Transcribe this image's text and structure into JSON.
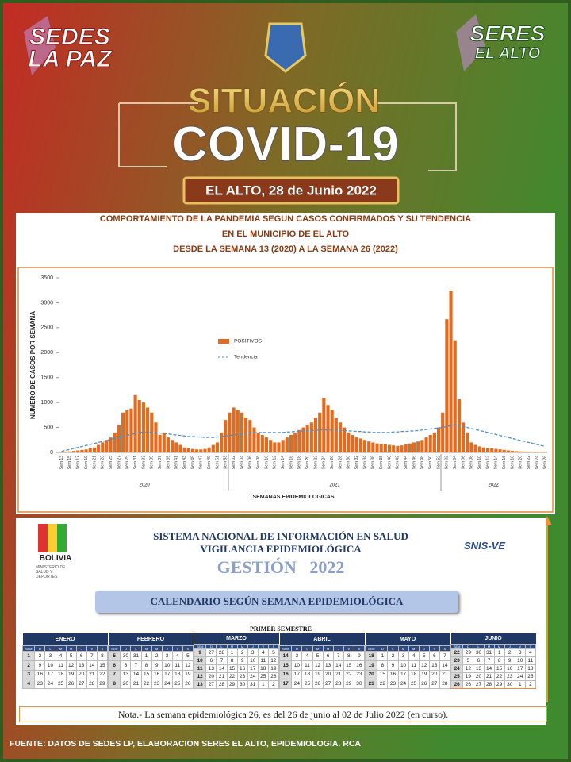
{
  "header": {
    "left_logo": [
      "SEDES",
      "LA PAZ"
    ],
    "right_logo": [
      "SERES",
      "EL ALTO"
    ],
    "title": "SITUACIÓN",
    "subtitle": "COVID-19",
    "date": "EL ALTO, 28 de Junio 2022"
  },
  "chart_data": {
    "type": "bar",
    "title_lines": [
      "COMPORTAMIENTO DE LA PANDEMIA SEGUN CASOS CONFIRMADOS Y SU TENDENCIA",
      "EN EL MUNICIPIO DE EL ALTO",
      "DESDE LA SEMANA 13 (2020) A LA SEMANA  26 (2022)"
    ],
    "ylabel": "NUMERO DE CASOS POR SEMANA",
    "xlabel": "SEMANAS EPIDEMIOLOGICAS",
    "years": [
      "2020",
      "2021",
      "2022"
    ],
    "ylim": [
      0,
      3500
    ],
    "yticks": [
      0,
      500,
      1000,
      1500,
      2000,
      2500,
      3000,
      3500
    ],
    "legend": "upper-left",
    "categories": [
      "Sem 13",
      null,
      "Sem 15",
      null,
      "Sem 17",
      null,
      "Sem 19",
      null,
      "Sem 21",
      null,
      "Sem 23",
      null,
      "Sem 25",
      null,
      "Sem 27",
      null,
      "Sem 29",
      null,
      "Sem 31",
      null,
      "Sem 33",
      null,
      "Sem 35",
      null,
      "Sem 37",
      null,
      "Sem 39",
      null,
      "Sem 41",
      null,
      "Sem 43",
      null,
      "Sem 45",
      null,
      "Sem 47",
      null,
      "Sem 49",
      null,
      "Sem 51",
      null,
      "Sem 53",
      null,
      "Sem 02",
      null,
      "Sem 04",
      null,
      "Sem 06",
      null,
      "Sem 08",
      null,
      "Sem 10",
      null,
      "Sem 12",
      null,
      "Sem 14",
      null,
      "Sem 16",
      null,
      "Sem 18",
      null,
      "Sem 20",
      null,
      "Sem 22",
      null,
      "Sem 24",
      null,
      "Sem 26",
      null,
      "Sem 28",
      null,
      "Sem 30",
      null,
      "Sem 32",
      null,
      "Sem 34",
      null,
      "Sem 36",
      null,
      "Sem 38",
      null,
      "Sem 40",
      null,
      "Sem 42",
      null,
      "Sem 44",
      null,
      "Sem 46",
      null,
      "Sem 48",
      null,
      "Sem 50",
      null,
      "Sem 52",
      null,
      "Sem 02",
      null,
      "Sem 04",
      null,
      "Sem 06",
      null,
      "Sem 08",
      null,
      "Sem 10",
      null,
      "Sem 12",
      null,
      "Sem 14",
      null,
      "Sem 16",
      null,
      "Sem 18",
      null,
      "Sem 20",
      null,
      "Sem 22",
      null,
      "Sem 24",
      null,
      "Sem 26"
    ],
    "series": [
      {
        "name": "POSITIVOS",
        "type": "bar",
        "color": "#e26b1f",
        "values": [
          10,
          15,
          20,
          30,
          40,
          50,
          60,
          80,
          100,
          150,
          200,
          250,
          300,
          400,
          550,
          800,
          850,
          880,
          1150,
          1050,
          1000,
          900,
          800,
          600,
          350,
          400,
          300,
          250,
          200,
          150,
          100,
          80,
          70,
          60,
          60,
          70,
          100,
          150,
          200,
          400,
          650,
          800,
          900,
          850,
          800,
          700,
          650,
          500,
          400,
          350,
          300,
          250,
          200,
          200,
          250,
          300,
          350,
          400,
          450,
          500,
          550,
          600,
          700,
          800,
          1091,
          950,
          850,
          700,
          600,
          500,
          400,
          350,
          300,
          280,
          250,
          220,
          200,
          180,
          170,
          160,
          150,
          140,
          130,
          140,
          160,
          180,
          200,
          220,
          250,
          300,
          350,
          400,
          500,
          800,
          2670,
          3242,
          2248,
          1067,
          600,
          400,
          200,
          150,
          120,
          100,
          90,
          80,
          70,
          60,
          50,
          40,
          30,
          25,
          20,
          15,
          10,
          10,
          10,
          10,
          10
        ]
      },
      {
        "name": "Tendencia",
        "type": "line",
        "line_style": "dashed",
        "color": "#4f8fc9",
        "values": [
          20,
          40,
          60,
          80,
          100,
          120,
          140,
          160,
          180,
          200,
          220,
          240,
          260,
          280,
          300,
          320,
          340,
          360,
          380,
          400,
          410,
          410,
          400,
          400,
          390,
          380,
          370,
          360,
          350,
          340,
          330,
          320,
          320,
          310,
          310,
          300,
          300,
          300,
          310,
          320,
          330,
          340,
          350,
          360,
          370,
          380,
          390,
          390,
          400,
          400,
          400,
          400,
          400,
          400,
          400,
          410,
          410,
          420,
          420,
          430,
          430,
          440,
          440,
          450,
          450,
          450,
          450,
          450,
          440,
          440,
          430,
          430,
          420,
          420,
          410,
          410,
          400,
          400,
          400,
          400,
          400,
          410,
          410,
          420,
          420,
          430,
          430,
          440,
          450,
          460,
          470,
          480,
          490,
          500,
          520,
          540,
          550,
          540,
          520,
          500,
          480,
          460,
          440,
          420,
          400,
          380,
          360,
          340,
          320,
          300,
          280,
          260,
          240,
          220,
          200,
          180,
          160,
          140,
          120
        ]
      }
    ]
  },
  "snis": {
    "country": "BOLIVIA",
    "ministry": "MINISTERIO DE SALUD Y DEPORTES",
    "logo": "SNIS-VE",
    "line1": "SISTEMA NACIONAL DE INFORMACIÓN EN SALUD",
    "line2": "VIGILANCIA EPIDEMIOLÓGICA",
    "gestion": "GESTIÓN   2022",
    "calendar_title": "CALENDARIO SEGÚN SEMANA EPIDEMIOLÓGICA"
  },
  "calendar": {
    "semester": "PRIMER SEMESTRE",
    "day_headers": [
      "SEM",
      "D",
      "L",
      "M",
      "M",
      "J",
      "V",
      "S"
    ],
    "months": [
      {
        "name": "ENERO",
        "weeks": [
          [
            1,
            2,
            3,
            4,
            5,
            6,
            7,
            8
          ],
          [
            2,
            9,
            10,
            11,
            12,
            13,
            14,
            15
          ],
          [
            3,
            16,
            17,
            18,
            19,
            20,
            21,
            22
          ],
          [
            4,
            23,
            24,
            25,
            26,
            27,
            28,
            29
          ]
        ]
      },
      {
        "name": "FEBRERO",
        "weeks": [
          [
            5,
            30,
            31,
            1,
            2,
            3,
            4,
            5
          ],
          [
            6,
            6,
            7,
            8,
            9,
            10,
            11,
            12
          ],
          [
            7,
            13,
            14,
            15,
            16,
            17,
            18,
            19
          ],
          [
            8,
            20,
            21,
            22,
            23,
            24,
            25,
            26
          ]
        ]
      },
      {
        "name": "MARZO",
        "weeks": [
          [
            9,
            27,
            28,
            1,
            2,
            3,
            4,
            5
          ],
          [
            10,
            6,
            7,
            8,
            9,
            10,
            11,
            12
          ],
          [
            11,
            13,
            14,
            15,
            16,
            17,
            18,
            19
          ],
          [
            12,
            20,
            21,
            22,
            23,
            24,
            25,
            26
          ],
          [
            13,
            27,
            28,
            29,
            30,
            31,
            1,
            2
          ]
        ]
      },
      {
        "name": "ABRIL",
        "weeks": [
          [
            14,
            3,
            4,
            5,
            6,
            7,
            8,
            9
          ],
          [
            15,
            10,
            11,
            12,
            13,
            14,
            15,
            16
          ],
          [
            16,
            17,
            18,
            19,
            20,
            21,
            22,
            23
          ],
          [
            17,
            24,
            25,
            26,
            27,
            28,
            29,
            30
          ]
        ]
      },
      {
        "name": "MAYO",
        "weeks": [
          [
            18,
            1,
            2,
            3,
            4,
            5,
            6,
            7
          ],
          [
            19,
            8,
            9,
            10,
            11,
            12,
            13,
            14
          ],
          [
            20,
            15,
            16,
            17,
            18,
            19,
            20,
            21
          ],
          [
            21,
            22,
            23,
            24,
            25,
            26,
            27,
            28
          ]
        ]
      },
      {
        "name": "JUNIO",
        "weeks": [
          [
            22,
            29,
            30,
            31,
            1,
            2,
            3,
            4
          ],
          [
            23,
            5,
            6,
            7,
            8,
            9,
            10,
            11
          ],
          [
            24,
            12,
            13,
            14,
            15,
            16,
            17,
            18
          ],
          [
            25,
            19,
            20,
            21,
            22,
            23,
            24,
            25
          ],
          [
            26,
            26,
            27,
            28,
            29,
            30,
            1,
            2
          ]
        ]
      }
    ]
  },
  "note": "Nota.- La semana epidemiológica  26, es del 26 de junio al 02 de Julio 2022 (en curso).",
  "source": "FUENTE: DATOS DE SEDES LP, ELABORACION SERES EL ALTO, EPIDEMIOLOGIA. RCA"
}
